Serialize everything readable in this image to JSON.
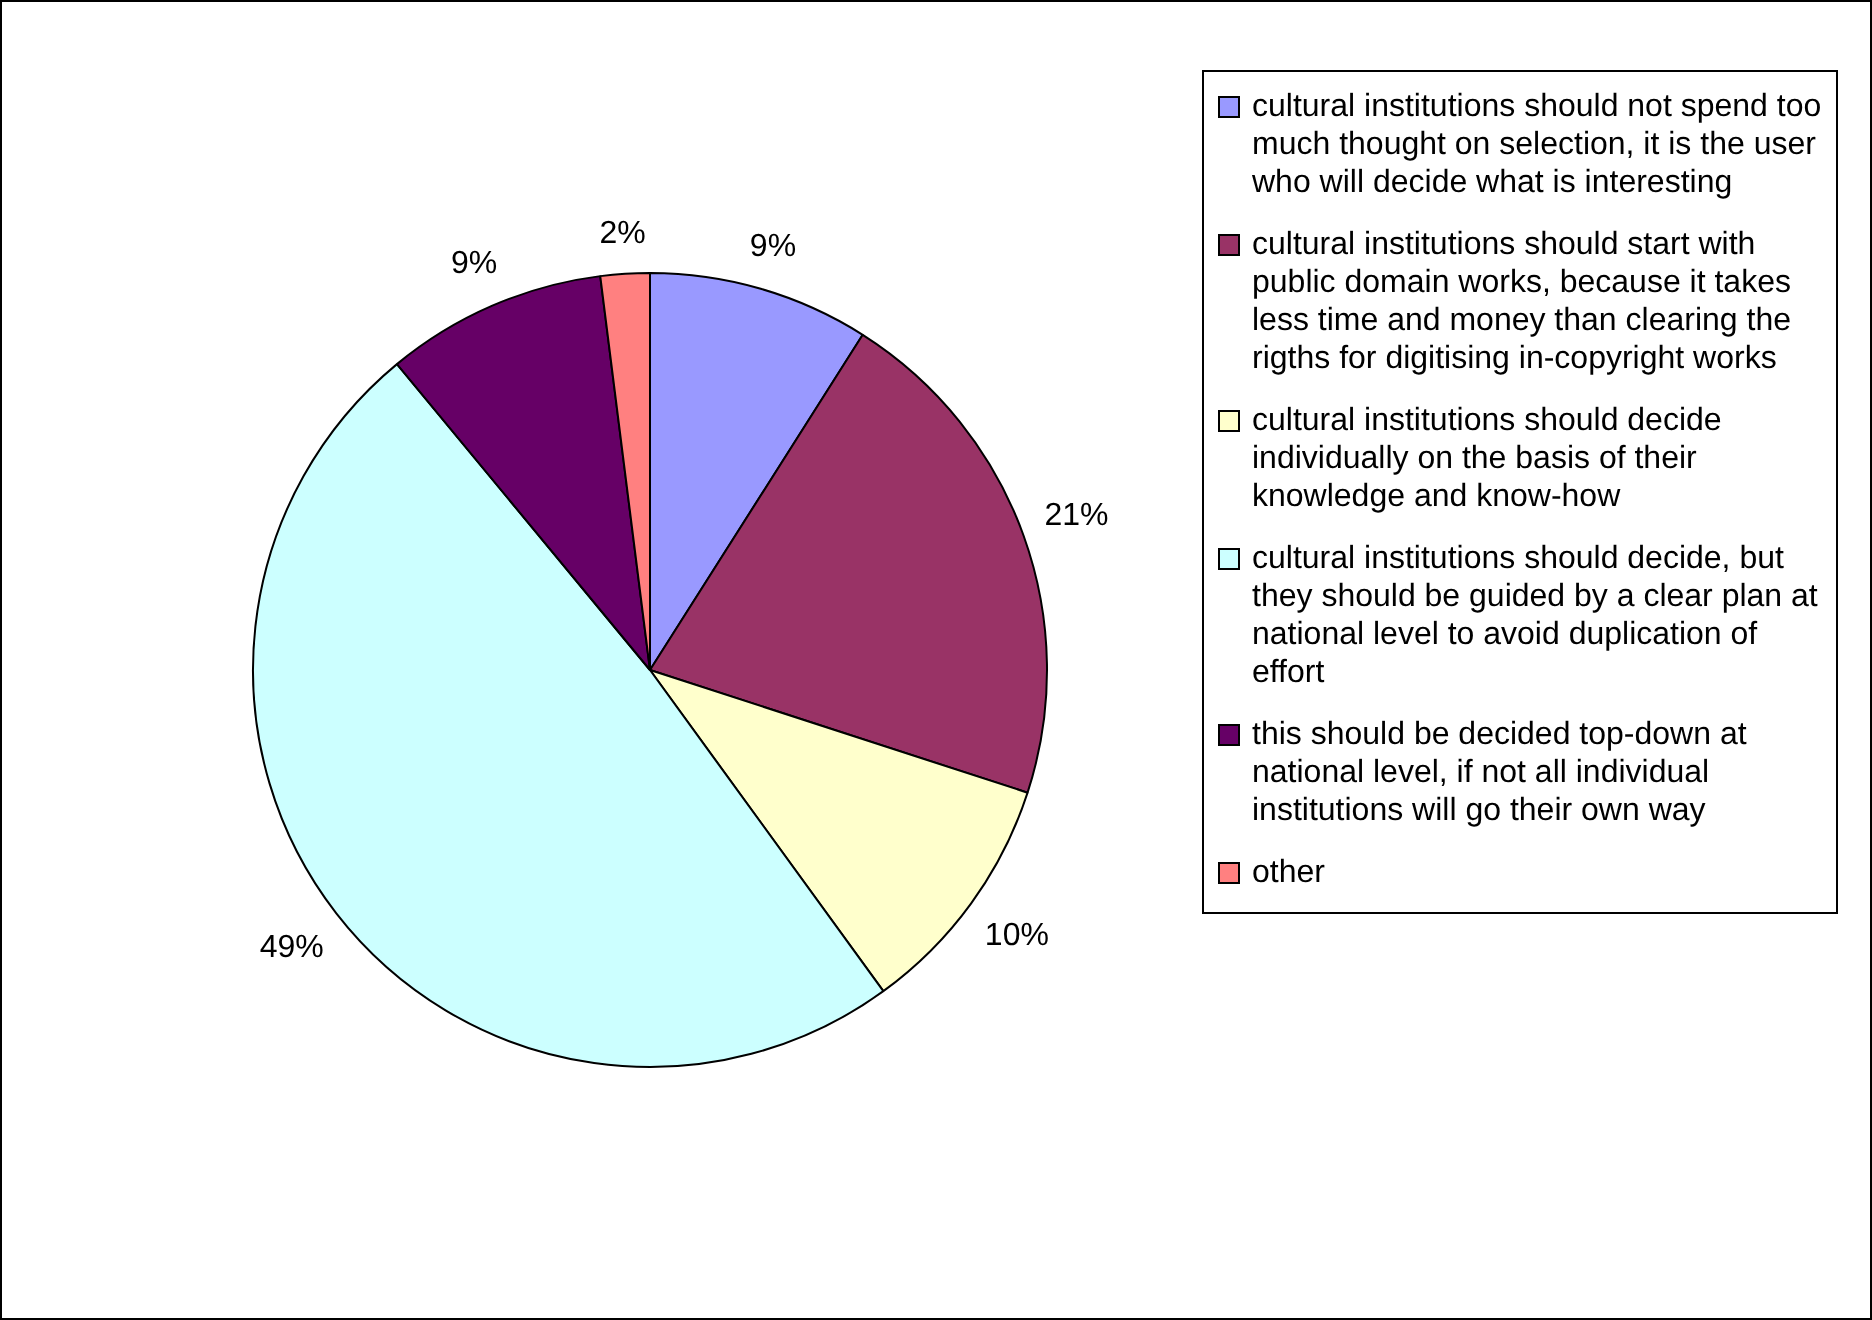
{
  "chart_data": {
    "type": "pie",
    "categories": [
      "cultural institutions should not spend too much thought on selection, it is the user who will decide what is interesting",
      "cultural institutions should start with public domain works, because it takes less time and money than clearing the rigths for digitising in-copyright works",
      "cultural institutions should decide individually on the basis of their knowledge and know-how",
      "cultural institutions should decide, but they should be guided by a clear plan at national level to avoid duplication of effort",
      "this should be decided top-down at national level, if not all individual institutions will go their own way",
      "other"
    ],
    "values": [
      9,
      21,
      10,
      49,
      9,
      2
    ],
    "colors": [
      "#9999ff",
      "#993366",
      "#ffffcc",
      "#ccffff",
      "#660066",
      "#ff8080"
    ],
    "value_labels": [
      "9%",
      "21%",
      "10%",
      "49%",
      "9%",
      "2%"
    ],
    "legend": "right"
  }
}
